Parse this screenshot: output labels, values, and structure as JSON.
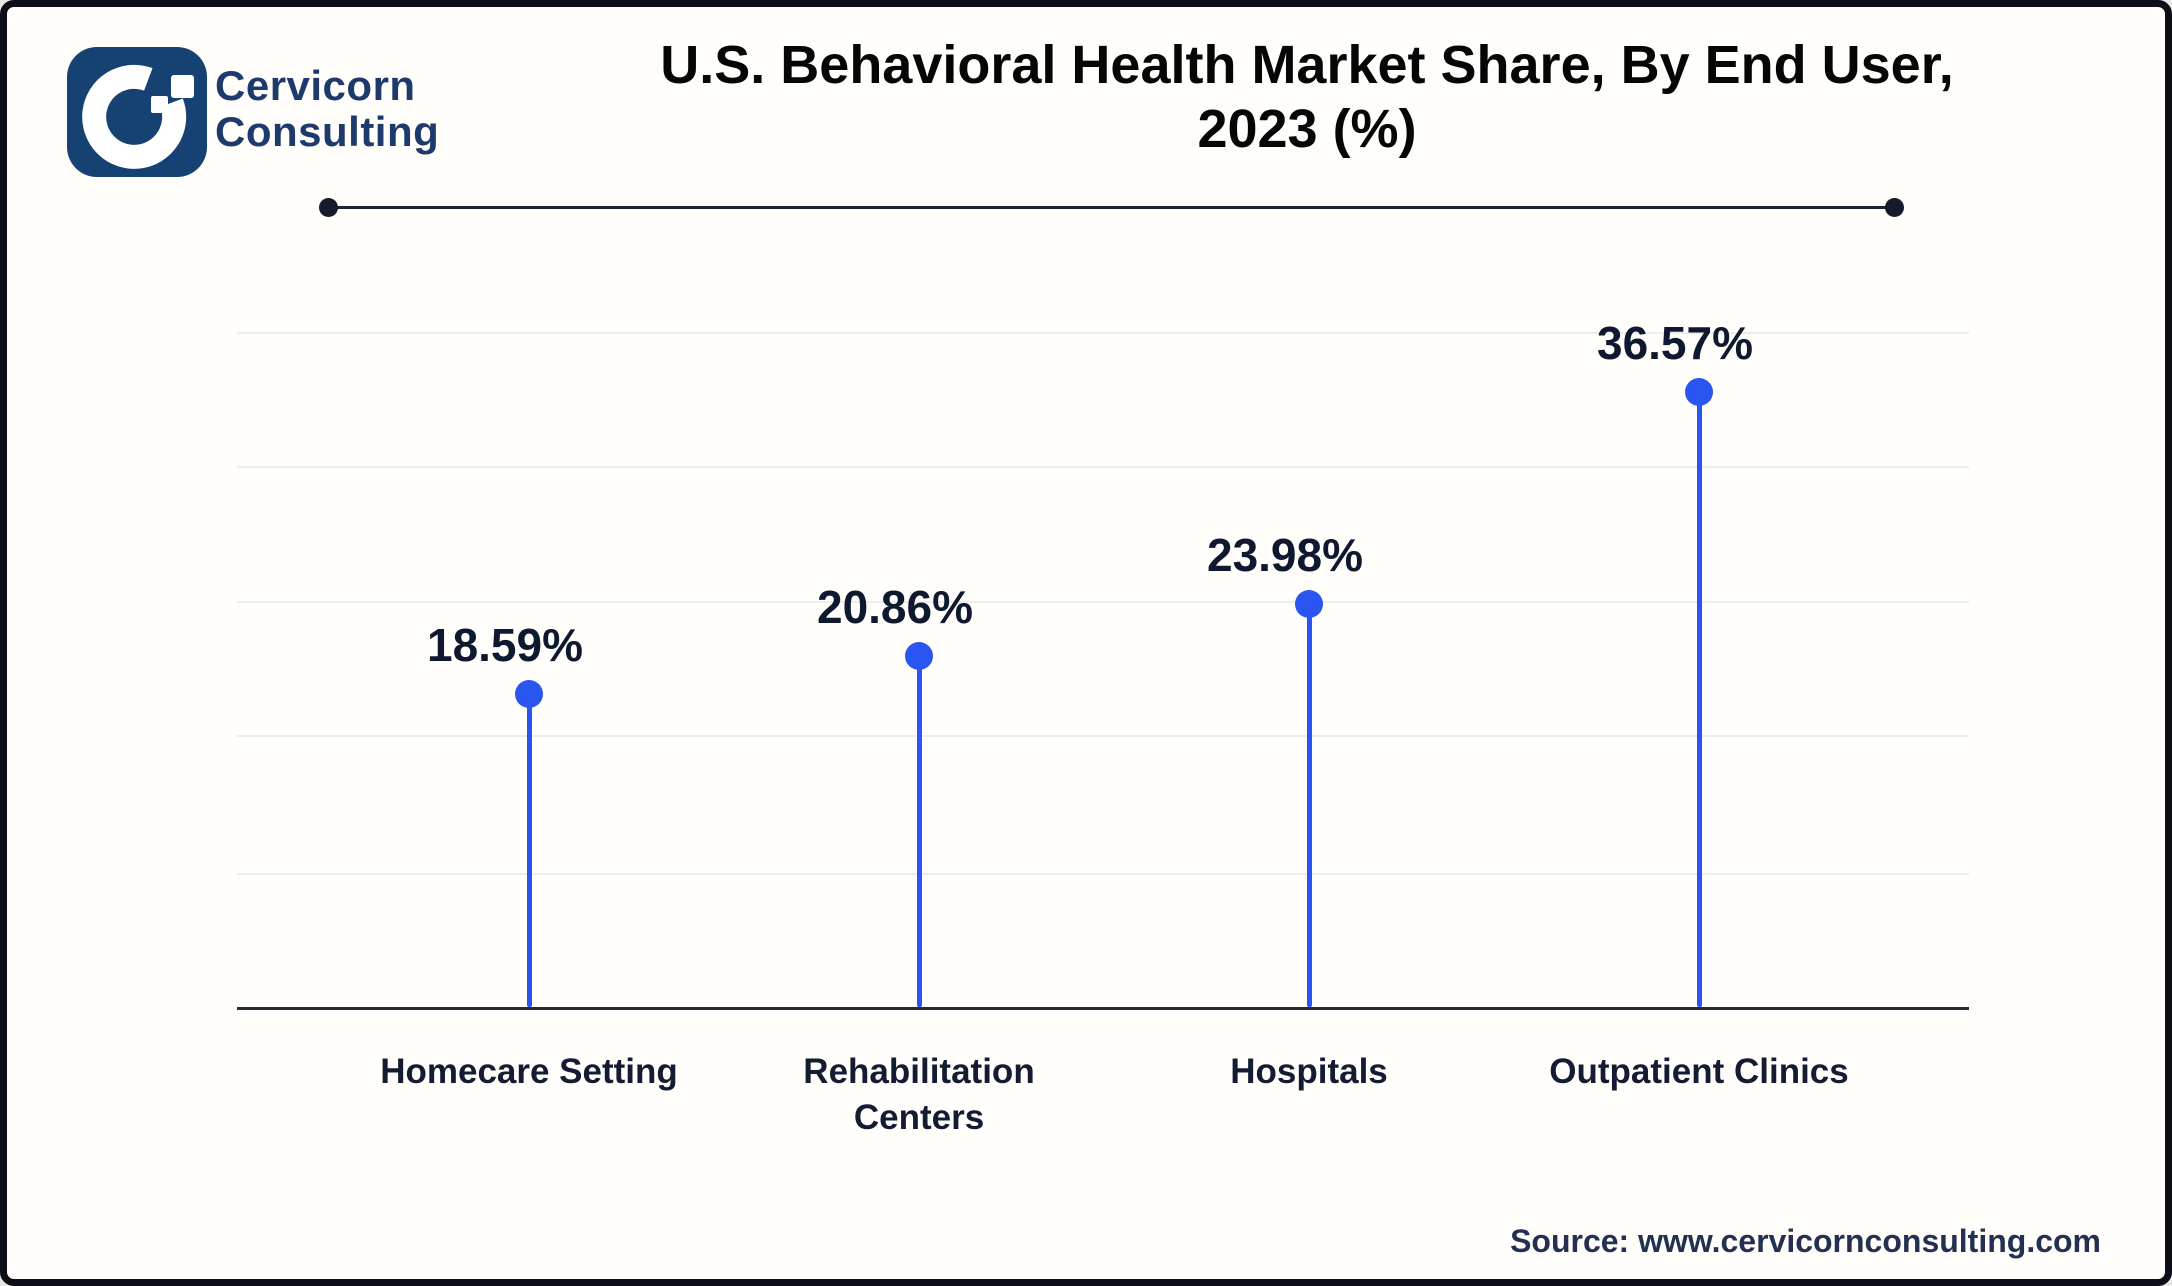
{
  "header": {
    "brand": {
      "line1": "Cervicorn",
      "line2": "Consulting"
    },
    "title_line1": "U.S. Behavioral Health Market Share, By End User,",
    "title_line2": "2023 (%)"
  },
  "chart_data": {
    "type": "lollipop",
    "title": "U.S. Behavioral Health Market Share, By End User, 2023 (%)",
    "categories": [
      "Homecare Setting",
      "Rehabilitation Centers",
      "Hospitals",
      "Outpatient Clinics"
    ],
    "values": [
      18.59,
      20.86,
      23.98,
      36.57
    ],
    "value_labels": [
      "18.59%",
      "20.86%",
      "23.98%",
      "36.57%"
    ],
    "xlabel": "",
    "ylabel": "",
    "ylim": [
      0,
      44
    ],
    "grid": true,
    "legend_position": "none",
    "accent_color": "#2b55f0"
  },
  "footer": {
    "source": "Source: www.cervicornconsulting.com"
  },
  "colors": {
    "accent_blue": "#2b55f0",
    "logo_navy": "#164173",
    "brand_text_navy": "#1e3a6d",
    "label_dark": "#0e1930",
    "gridline_gray": "#ececec",
    "divider_navy": "#1b2136"
  }
}
